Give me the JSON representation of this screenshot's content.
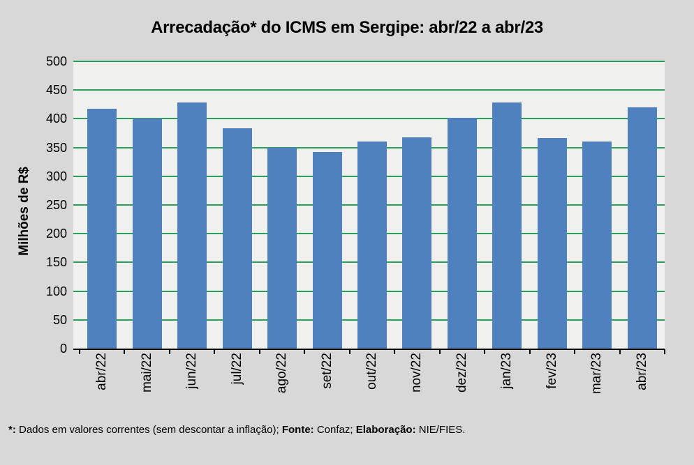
{
  "chart_data": {
    "type": "bar",
    "title": "Arrecadação* do ICMS em Sergipe: abr/22 a abr/23",
    "ylabel": "Milhões de R$",
    "xlabel": "",
    "categories": [
      "abr/22",
      "mai/22",
      "jun/22",
      "jul/22",
      "ago/22",
      "set/22",
      "out/22",
      "nov/22",
      "dez/22",
      "jan/23",
      "fev/23",
      "mar/23",
      "abr/23"
    ],
    "values": [
      418,
      400,
      429,
      383,
      349,
      342,
      360,
      368,
      402,
      429,
      367,
      361,
      420
    ],
    "ylim": [
      0,
      500
    ],
    "yticks": [
      0,
      50,
      100,
      150,
      200,
      250,
      300,
      350,
      400,
      450,
      500
    ],
    "grid": true,
    "legend_position": "none",
    "colors": {
      "bar": "#4E81BD",
      "gridline": "#2A9E5B",
      "plot_bg": "#F0F1EF",
      "page_bg": "#D8D8D8",
      "axis": "#000000",
      "text": "#000000"
    }
  },
  "footnote": {
    "segments": [
      {
        "text": "*:",
        "bold": true
      },
      {
        "text": " Dados em valores correntes (sem descontar a inflação); ",
        "bold": false
      },
      {
        "text": "Fonte:",
        "bold": true
      },
      {
        "text": " Confaz; ",
        "bold": false
      },
      {
        "text": "Elaboração:",
        "bold": true
      },
      {
        "text": " NIE/FIES.",
        "bold": false
      }
    ]
  }
}
